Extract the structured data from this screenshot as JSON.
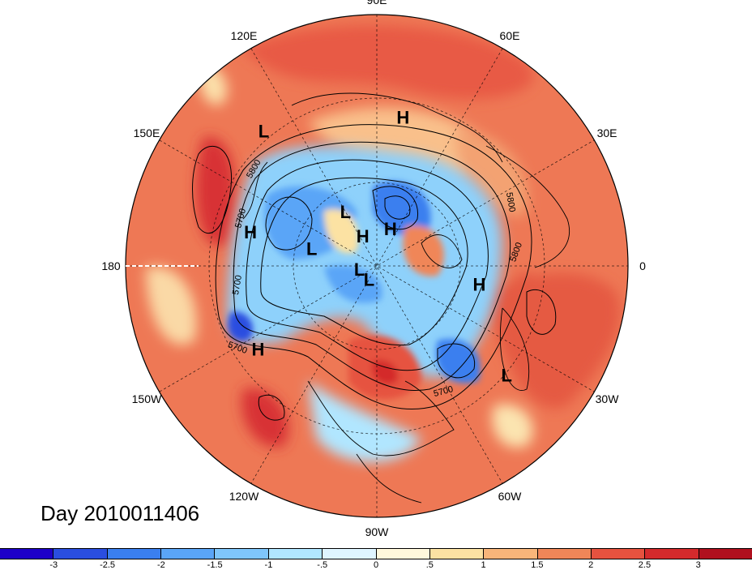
{
  "title": "Day 2010011406",
  "longitude_labels": [
    {
      "text": "90E",
      "angle": 90
    },
    {
      "text": "60E",
      "angle": 60
    },
    {
      "text": "30E",
      "angle": 30
    },
    {
      "text": "0",
      "angle": 0
    },
    {
      "text": "30W",
      "angle": -30
    },
    {
      "text": "60W",
      "angle": -60
    },
    {
      "text": "90W",
      "angle": -90
    },
    {
      "text": "120W",
      "angle": -120
    },
    {
      "text": "150W",
      "angle": -150
    },
    {
      "text": "180",
      "angle": 180
    },
    {
      "text": "150E",
      "angle": 150
    },
    {
      "text": "120E",
      "angle": 120
    }
  ],
  "pressure_systems": [
    {
      "type": "L",
      "lon": 130,
      "lat": 20
    },
    {
      "type": "H",
      "lon": 80,
      "lat": 28
    },
    {
      "type": "H",
      "lon": 165,
      "lat": 35
    },
    {
      "type": "L",
      "lon": 120,
      "lat": 62
    },
    {
      "type": "H",
      "lon": 115,
      "lat": 75
    },
    {
      "type": "L",
      "lon": 165,
      "lat": 60
    },
    {
      "type": "H",
      "lon": 70,
      "lat": 72
    },
    {
      "type": "L",
      "lon": -170,
      "lat": 82
    },
    {
      "type": "L",
      "lon": -120,
      "lat": 83
    },
    {
      "type": "H",
      "lon": -10,
      "lat": 45
    },
    {
      "type": "H",
      "lon": -145,
      "lat": 30
    },
    {
      "type": "L",
      "lon": -40,
      "lat": 22
    }
  ],
  "contour_labels": [
    "5800",
    "5700",
    "5700",
    "5700",
    "5800",
    "5700",
    "5800"
  ],
  "colorbar": {
    "ticks": [
      "-3",
      "-2.5",
      "-2",
      "-1.5",
      "-1",
      "-.5",
      "0",
      ".5",
      "1",
      "1.5",
      "2",
      "2.5",
      "3"
    ],
    "colors": [
      "#1d00c8",
      "#2a4ee0",
      "#3a7fef",
      "#5aa5f7",
      "#7fc6fb",
      "#b1e6ff",
      "#dff5ff",
      "#fff8dc",
      "#fce2a3",
      "#f8b57a",
      "#f08658",
      "#e6523f",
      "#d42a2c",
      "#b0101e"
    ]
  }
}
